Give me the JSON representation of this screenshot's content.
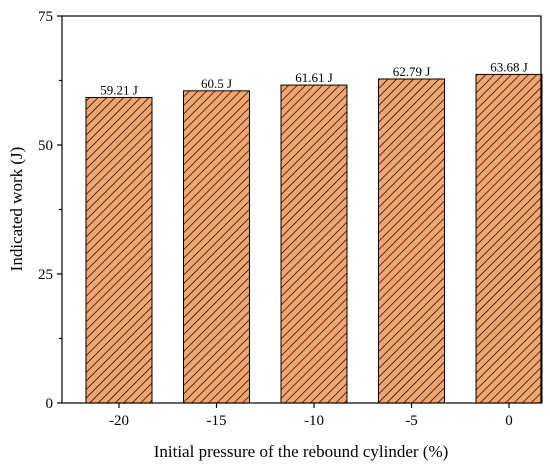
{
  "colors": {
    "bar_fill": "#f5a66e",
    "hatch": "#000000",
    "axis": "#000000"
  },
  "chart_data": {
    "type": "bar",
    "pattern": "diagonal-hatch",
    "categories": [
      "-20",
      "-15",
      "-10",
      "-5",
      "0"
    ],
    "values": [
      59.21,
      60.5,
      61.61,
      62.79,
      63.68
    ],
    "data_labels": [
      "59.21 J",
      "60.5 J",
      "61.61 J",
      "62.79 J",
      "63.68 J"
    ],
    "title": "",
    "xlabel": "Initial pressure of the rebound cylinder (%)",
    "ylabel": "Indicated work (J)",
    "ylim": [
      0,
      75
    ],
    "yticks": [
      0,
      25,
      50,
      75
    ],
    "grid": false,
    "legend": null
  }
}
